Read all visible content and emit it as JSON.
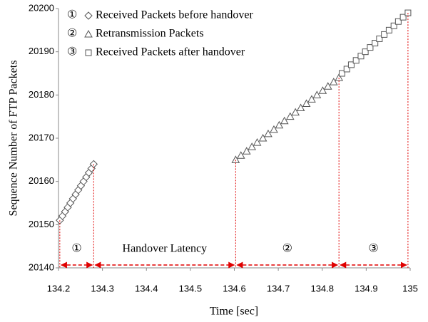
{
  "chart_data": {
    "type": "scatter",
    "xlabel": "Time [sec]",
    "ylabel": "Sequence Number of FTP Packets",
    "xlim": [
      134.2,
      135
    ],
    "xticks": [
      134.2,
      134.3,
      134.4,
      134.5,
      134.6,
      134.7,
      134.8,
      134.9,
      135
    ],
    "ylim": [
      20140,
      20200
    ],
    "yticks": [
      20140,
      20150,
      20160,
      20170,
      20180,
      20190,
      20200
    ],
    "annotations": [
      "①",
      "Handover Latency",
      "②",
      "③"
    ],
    "annotation_color": "#e00000",
    "legend": "upper left",
    "series": [
      {
        "name": "Received Packets before handover",
        "marker": "diamond",
        "color": "#555555",
        "x": [
          134.203,
          134.209,
          134.215,
          134.221,
          134.227,
          134.233,
          134.239,
          134.245,
          134.251,
          134.257,
          134.263,
          134.269,
          134.275,
          134.28
        ],
        "values": [
          20151,
          20152,
          20153,
          20154,
          20155,
          20156,
          20157,
          20158,
          20159,
          20160,
          20161,
          20162,
          20163,
          20164
        ]
      },
      {
        "name": "Retransmission Packets",
        "marker": "triangle",
        "color": "#555555",
        "x": [
          134.603,
          134.615,
          134.628,
          134.64,
          134.652,
          134.665,
          134.677,
          134.69,
          134.702,
          134.714,
          134.727,
          134.739,
          134.751,
          134.764,
          134.776,
          134.788,
          134.801,
          134.813,
          134.826,
          134.838
        ],
        "values": [
          20165,
          20166,
          20167,
          20168,
          20169,
          20170,
          20171,
          20172,
          20173,
          20174,
          20175,
          20176,
          20177,
          20178,
          20179,
          20180,
          20181,
          20182,
          20183,
          20184
        ]
      },
      {
        "name": "Received Packets after handover",
        "marker": "square",
        "color": "#555555",
        "x": [
          134.845,
          134.856,
          134.866,
          134.877,
          134.888,
          134.898,
          134.909,
          134.92,
          134.93,
          134.941,
          134.952,
          134.963,
          134.973,
          134.984,
          134.995
        ],
        "values": [
          20185,
          20186,
          20187,
          20188,
          20189,
          20190,
          20191,
          20192,
          20193,
          20194,
          20195,
          20196,
          20197,
          20198,
          20199
        ]
      }
    ]
  }
}
